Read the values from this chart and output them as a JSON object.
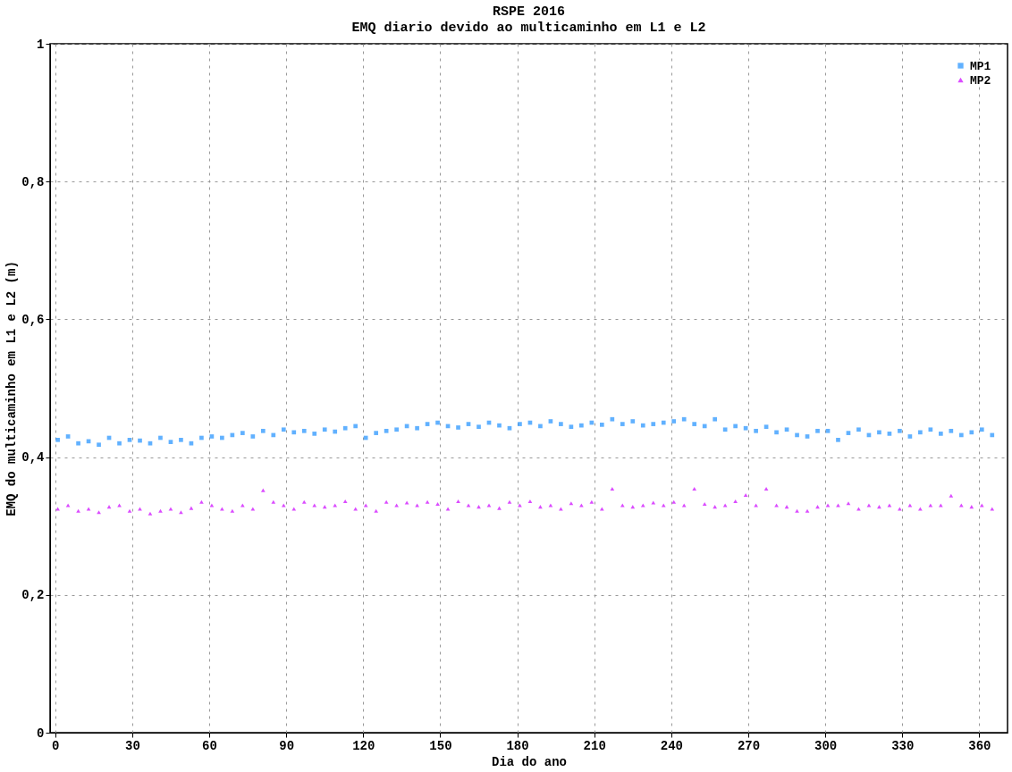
{
  "chart_data": {
    "type": "scatter",
    "title": "RSPE 2016",
    "subtitle": "EMQ diario devido ao multicaminho em L1 e L2",
    "xlabel": "Dia do ano",
    "ylabel": "EMQ do multicaminho em L1 e L2 (m)",
    "x": [
      1,
      5,
      9,
      13,
      17,
      21,
      25,
      29,
      33,
      37,
      41,
      45,
      49,
      53,
      57,
      61,
      65,
      69,
      73,
      77,
      81,
      85,
      89,
      93,
      97,
      101,
      105,
      109,
      113,
      117,
      121,
      125,
      129,
      133,
      137,
      141,
      145,
      149,
      153,
      157,
      161,
      165,
      169,
      173,
      177,
      181,
      185,
      189,
      193,
      197,
      201,
      205,
      209,
      213,
      217,
      221,
      225,
      229,
      233,
      237,
      241,
      245,
      249,
      253,
      257,
      261,
      265,
      269,
      273,
      277,
      281,
      285,
      289,
      293,
      297,
      301,
      305,
      309,
      313,
      317,
      321,
      325,
      329,
      333,
      337,
      341,
      345,
      349,
      353,
      357,
      361,
      365
    ],
    "series": [
      {
        "name": "MP1",
        "color": "#1e90ff",
        "marker": "square",
        "values": [
          0.425,
          0.43,
          0.42,
          0.423,
          0.418,
          0.428,
          0.42,
          0.425,
          0.424,
          0.42,
          0.428,
          0.422,
          0.425,
          0.42,
          0.428,
          0.43,
          0.428,
          0.432,
          0.435,
          0.43,
          0.438,
          0.432,
          0.44,
          0.436,
          0.438,
          0.434,
          0.44,
          0.437,
          0.442,
          0.445,
          0.428,
          0.435,
          0.438,
          0.44,
          0.445,
          0.442,
          0.448,
          0.45,
          0.445,
          0.443,
          0.448,
          0.444,
          0.45,
          0.446,
          0.442,
          0.448,
          0.45,
          0.445,
          0.452,
          0.448,
          0.444,
          0.446,
          0.45,
          0.447,
          0.455,
          0.448,
          0.452,
          0.446,
          0.448,
          0.45,
          0.452,
          0.455,
          0.448,
          0.445,
          0.455,
          0.44,
          0.445,
          0.442,
          0.438,
          0.444,
          0.436,
          0.44,
          0.432,
          0.43,
          0.438,
          0.438,
          0.425,
          0.435,
          0.44,
          0.432,
          0.436,
          0.434,
          0.438,
          0.43,
          0.436,
          0.44,
          0.434,
          0.438,
          0.432,
          0.436,
          0.44,
          0.432
        ]
      },
      {
        "name": "MP2",
        "color": "#cc00ff",
        "marker": "triangle",
        "values": [
          0.325,
          0.33,
          0.322,
          0.325,
          0.32,
          0.328,
          0.33,
          0.322,
          0.325,
          0.318,
          0.322,
          0.325,
          0.32,
          0.326,
          0.335,
          0.33,
          0.325,
          0.322,
          0.33,
          0.325,
          0.352,
          0.335,
          0.33,
          0.325,
          0.335,
          0.33,
          0.328,
          0.33,
          0.336,
          0.325,
          0.33,
          0.322,
          0.335,
          0.33,
          0.334,
          0.33,
          0.335,
          0.332,
          0.325,
          0.336,
          0.33,
          0.328,
          0.33,
          0.326,
          0.335,
          0.33,
          0.336,
          0.328,
          0.33,
          0.325,
          0.333,
          0.33,
          0.335,
          0.325,
          0.354,
          0.33,
          0.328,
          0.33,
          0.334,
          0.33,
          0.335,
          0.33,
          0.354,
          0.332,
          0.328,
          0.33,
          0.336,
          0.345,
          0.33,
          0.354,
          0.33,
          0.328,
          0.322,
          0.322,
          0.328,
          0.33,
          0.33,
          0.333,
          0.325,
          0.33,
          0.328,
          0.33,
          0.325,
          0.33,
          0.325,
          0.33,
          0.33,
          0.344,
          0.33,
          0.328,
          0.33,
          0.325
        ]
      }
    ],
    "xlim": [
      -2,
      371
    ],
    "ylim": [
      0,
      1
    ],
    "xticks": [
      0,
      30,
      60,
      90,
      120,
      150,
      180,
      210,
      240,
      270,
      300,
      330,
      360
    ],
    "yticks": [
      0,
      {
        "value": 0.2,
        "label": "0,2"
      },
      {
        "value": 0.4,
        "label": "0,4"
      },
      {
        "value": 0.6,
        "label": "0,6"
      },
      {
        "value": 0.8,
        "label": "0,8"
      },
      1
    ],
    "grid": true,
    "legend": "top right"
  }
}
